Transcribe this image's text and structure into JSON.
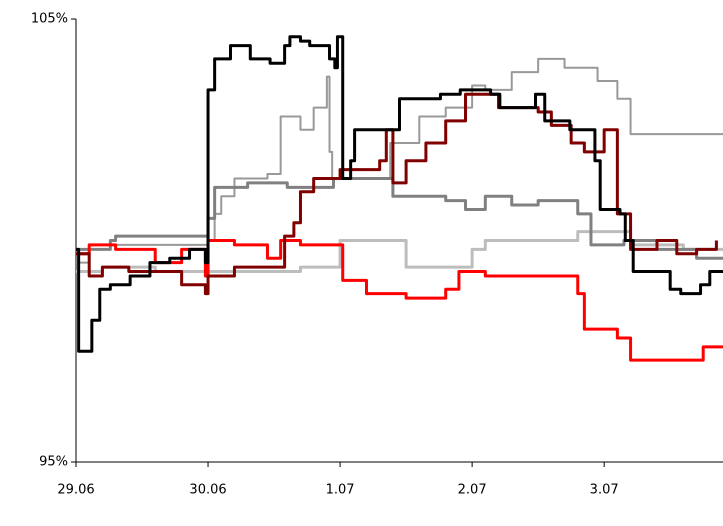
{
  "chart_data": {
    "type": "line",
    "drawstyle": "steps-post",
    "xlim": [
      0,
      4.9
    ],
    "xticks": [
      {
        "value": 0,
        "label": "29.06"
      },
      {
        "value": 1,
        "label": "30.06"
      },
      {
        "value": 2,
        "label": "1.07"
      },
      {
        "value": 3,
        "label": "2.07"
      },
      {
        "value": 4,
        "label": "3.07"
      }
    ],
    "ylim": [
      95,
      105
    ],
    "yticks": [
      {
        "value": 95,
        "label": "95%"
      },
      {
        "value": 105,
        "label": "105%"
      }
    ],
    "grid": false,
    "series": [
      {
        "color": "#bdbdbd",
        "width": 3,
        "x": [
          0,
          0.2,
          0.6,
          1.7,
          2.0,
          2.5,
          3.0,
          3.1,
          3.6,
          3.8,
          4.2,
          4.6,
          4.9
        ],
        "values": [
          99.3,
          99.4,
          99.3,
          99.4,
          100.0,
          99.4,
          99.8,
          100.0,
          100.0,
          100.2,
          99.9,
          99.8,
          99.8
        ]
      },
      {
        "color": "#999999",
        "width": 2,
        "x": [
          0,
          0.1,
          0.5,
          1.0,
          1.05,
          1.1,
          1.2,
          1.45,
          1.55,
          1.7,
          1.8,
          1.9,
          1.92,
          1.94,
          2.3,
          2.38,
          2.5,
          2.6,
          2.8,
          3.0,
          3.1,
          3.3,
          3.5,
          3.7,
          3.95,
          4.1,
          4.2,
          4.9
        ],
        "values": [
          99.5,
          99.9,
          99.9,
          100.0,
          100.6,
          101.0,
          101.4,
          101.5,
          102.8,
          102.5,
          103.0,
          103.7,
          102.0,
          101.4,
          101.4,
          102.2,
          102.2,
          102.8,
          103.0,
          103.5,
          103.4,
          103.8,
          104.1,
          103.9,
          103.6,
          103.2,
          102.4,
          102.4
        ]
      },
      {
        "color": "#808080",
        "width": 3,
        "x": [
          0,
          0.26,
          0.3,
          1.0,
          1.05,
          1.3,
          1.6,
          1.95,
          2.0,
          2.4,
          2.8,
          2.95,
          3.1,
          3.3,
          3.5,
          3.8,
          3.9,
          4.15,
          4.4,
          4.7,
          4.9
        ],
        "values": [
          99.8,
          100.0,
          100.1,
          100.5,
          101.2,
          101.3,
          101.2,
          101.4,
          101.4,
          101.0,
          100.9,
          100.7,
          101.0,
          100.8,
          100.9,
          100.6,
          99.9,
          100.0,
          99.8,
          99.6,
          99.6
        ]
      },
      {
        "color": "#ff0000",
        "width": 3,
        "x": [
          0,
          0.1,
          0.3,
          0.6,
          0.8,
          0.98,
          1.0,
          1.2,
          1.45,
          1.55,
          1.7,
          1.95,
          2.02,
          2.2,
          2.5,
          2.8,
          2.9,
          3.1,
          3.21,
          3.8,
          3.85,
          4.1,
          4.2,
          4.75,
          4.9
        ],
        "values": [
          99.7,
          99.9,
          99.8,
          99.5,
          99.8,
          99.2,
          100.0,
          99.9,
          99.6,
          100.0,
          99.9,
          99.9,
          99.1,
          98.8,
          98.7,
          98.9,
          99.3,
          99.2,
          99.2,
          98.8,
          98.0,
          97.8,
          97.3,
          97.6,
          97.6
        ]
      },
      {
        "color": "#800000",
        "width": 3,
        "x": [
          0,
          0.1,
          0.2,
          0.4,
          0.8,
          0.98,
          1.0,
          1.2,
          1.58,
          1.65,
          1.7,
          1.8,
          2.0,
          2.3,
          2.35,
          2.4,
          2.5,
          2.65,
          2.8,
          2.95,
          3.2,
          3.5,
          3.6,
          3.75,
          3.85,
          4.0,
          4.1,
          4.2,
          4.4,
          4.55,
          4.7,
          4.85
        ],
        "values": [
          99.7,
          99.2,
          99.4,
          99.3,
          99.0,
          98.8,
          99.2,
          99.4,
          100.1,
          100.4,
          101.1,
          101.4,
          101.6,
          101.8,
          102.5,
          101.3,
          101.8,
          102.2,
          102.7,
          103.3,
          103.0,
          102.9,
          102.6,
          102.2,
          102.0,
          102.5,
          100.6,
          99.8,
          100.0,
          99.7,
          99.8,
          100.0
        ]
      },
      {
        "color": "#000000",
        "width": 3,
        "x": [
          0,
          0.02,
          0.12,
          0.18,
          0.26,
          0.41,
          0.56,
          0.71,
          0.86,
          0.98,
          1.0,
          1.05,
          1.17,
          1.32,
          1.47,
          1.58,
          1.62,
          1.7,
          1.77,
          1.92,
          1.96,
          1.98,
          2.02,
          2.08,
          2.11,
          2.3,
          2.45,
          2.76,
          2.91,
          3.14,
          3.21,
          3.48,
          3.55,
          3.74,
          3.82,
          3.93,
          3.97,
          4.12,
          4.16,
          4.22,
          4.5,
          4.58,
          4.73,
          4.8,
          4.9
        ],
        "values": [
          99.8,
          97.5,
          98.2,
          98.9,
          99.0,
          99.2,
          99.5,
          99.6,
          99.8,
          99.5,
          103.4,
          104.1,
          104.4,
          104.1,
          104.0,
          104.4,
          104.6,
          104.5,
          104.4,
          104.1,
          103.9,
          104.6,
          101.4,
          101.8,
          102.5,
          102.5,
          103.2,
          103.3,
          103.4,
          103.3,
          103.0,
          103.3,
          102.7,
          102.5,
          102.5,
          101.8,
          100.7,
          100.6,
          100.0,
          99.3,
          98.9,
          98.8,
          99.0,
          99.3,
          99.3
        ]
      }
    ]
  }
}
